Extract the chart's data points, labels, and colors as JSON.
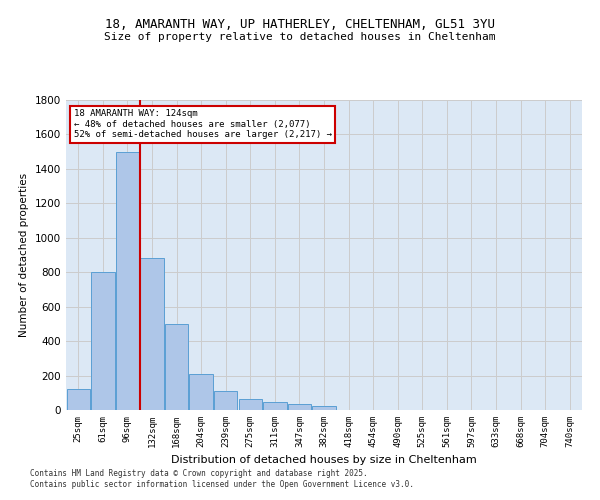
{
  "title_line1": "18, AMARANTH WAY, UP HATHERLEY, CHELTENHAM, GL51 3YU",
  "title_line2": "Size of property relative to detached houses in Cheltenham",
  "xlabel": "Distribution of detached houses by size in Cheltenham",
  "ylabel": "Number of detached properties",
  "categories": [
    "25sqm",
    "61sqm",
    "96sqm",
    "132sqm",
    "168sqm",
    "204sqm",
    "239sqm",
    "275sqm",
    "311sqm",
    "347sqm",
    "382sqm",
    "418sqm",
    "454sqm",
    "490sqm",
    "525sqm",
    "561sqm",
    "597sqm",
    "633sqm",
    "668sqm",
    "704sqm",
    "740sqm"
  ],
  "values": [
    120,
    800,
    1500,
    880,
    500,
    210,
    110,
    65,
    45,
    35,
    25,
    0,
    0,
    0,
    0,
    0,
    0,
    0,
    0,
    0,
    0
  ],
  "bar_color": "#aec6e8",
  "bar_edge_color": "#5a9fd4",
  "annotation_line1": "18 AMARANTH WAY: 124sqm",
  "annotation_line2": "← 48% of detached houses are smaller (2,077)",
  "annotation_line3": "52% of semi-detached houses are larger (2,217) →",
  "annotation_box_color": "#ffffff",
  "annotation_box_edge_color": "#cc0000",
  "redline_color": "#cc0000",
  "ylim": [
    0,
    1800
  ],
  "yticks": [
    0,
    200,
    400,
    600,
    800,
    1000,
    1200,
    1400,
    1600,
    1800
  ],
  "grid_color": "#cccccc",
  "bg_color": "#dce8f5",
  "footer_line1": "Contains HM Land Registry data © Crown copyright and database right 2025.",
  "footer_line2": "Contains public sector information licensed under the Open Government Licence v3.0."
}
